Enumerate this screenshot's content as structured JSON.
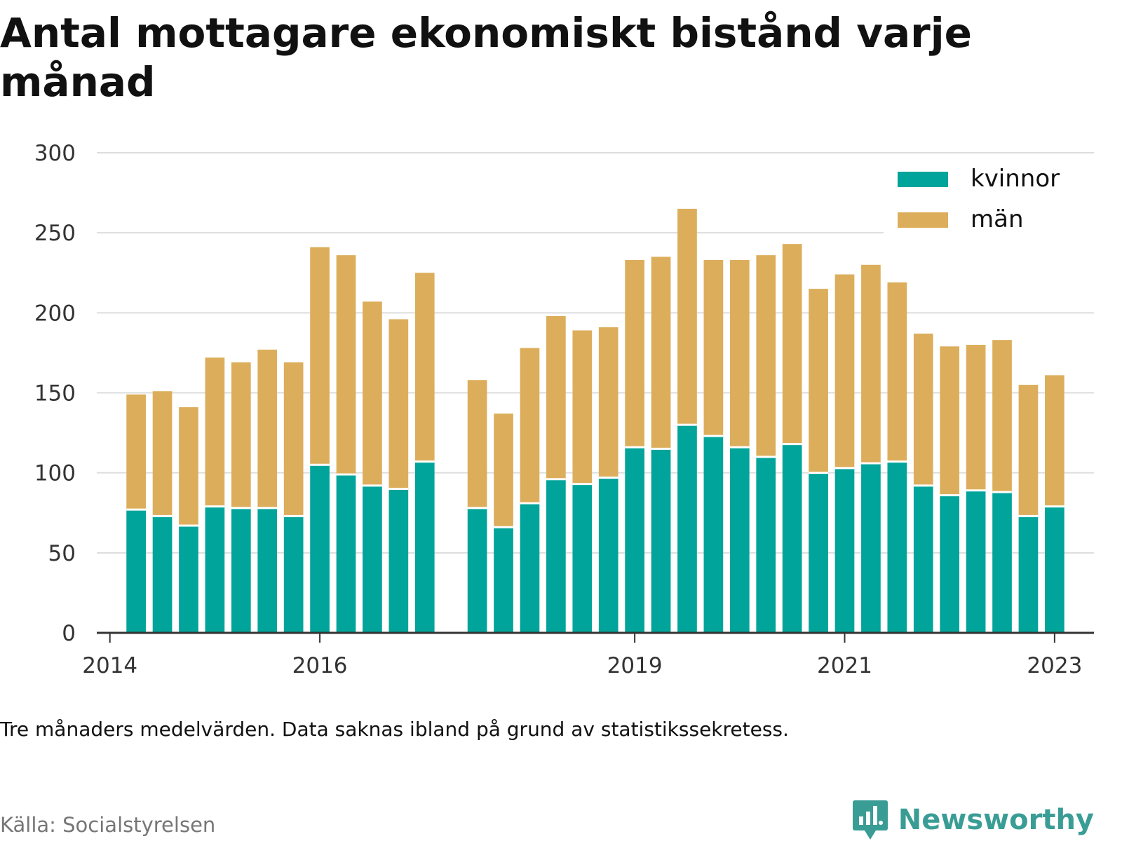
{
  "title": "Antal mottagare ekonomiskt bistånd varje månad",
  "footnote": "Tre månaders medelvärden. Data saknas ibland på grund av statistikssekretess.",
  "source": "Källa: Socialstyrelsen",
  "brand": {
    "name": "Newsworthy",
    "logo_icon": "newsworthy-logo-icon",
    "color": "#3a9d95"
  },
  "colors": {
    "kvinnor": "#00a49a",
    "man": "#dcae5b",
    "grid": "#dddddd",
    "axis": "#333333",
    "text": "#333333"
  },
  "chart_data": {
    "type": "bar",
    "stacked": true,
    "title": "Antal mottagare ekonomiskt bistånd varje månad",
    "xlabel": "",
    "ylabel": "",
    "ylim": [
      0,
      300
    ],
    "yticks": [
      "0",
      "50",
      "100",
      "150",
      "200",
      "250",
      "300"
    ],
    "xticks": [
      {
        "label": "2014",
        "quarter": "2014-Q1"
      },
      {
        "label": "2016",
        "quarter": "2016-Q1"
      },
      {
        "label": "2019",
        "quarter": "2019-Q1"
      },
      {
        "label": "2021",
        "quarter": "2021-Q1"
      },
      {
        "label": "2023",
        "quarter": "2023-Q1"
      }
    ],
    "legend_position": "top-right",
    "categories": [
      "2014-Q1",
      "2014-Q2",
      "2014-Q3",
      "2014-Q4",
      "2015-Q1",
      "2015-Q2",
      "2015-Q3",
      "2015-Q4",
      "2016-Q1",
      "2016-Q2",
      "2016-Q3",
      "2016-Q4",
      "2017-Q1",
      "2017-Q2",
      "2017-Q3",
      "2017-Q4",
      "2018-Q1",
      "2018-Q2",
      "2018-Q3",
      "2018-Q4",
      "2019-Q1",
      "2019-Q2",
      "2019-Q3",
      "2019-Q4",
      "2020-Q1",
      "2020-Q2",
      "2020-Q3",
      "2020-Q4",
      "2021-Q1",
      "2021-Q2",
      "2021-Q3",
      "2021-Q4",
      "2022-Q1",
      "2022-Q2",
      "2022-Q3",
      "2022-Q4",
      "2023-Q1",
      "2023-Q2"
    ],
    "series": [
      {
        "name": "kvinnor",
        "values": [
          null,
          77,
          73,
          67,
          79,
          78,
          78,
          73,
          105,
          99,
          92,
          90,
          107,
          null,
          78,
          66,
          81,
          96,
          93,
          97,
          116,
          115,
          130,
          123,
          116,
          110,
          118,
          100,
          103,
          106,
          107,
          92,
          86,
          89,
          88,
          73,
          79,
          null
        ]
      },
      {
        "name": "män",
        "values": [
          null,
          72,
          78,
          74,
          93,
          91,
          99,
          96,
          136,
          137,
          115,
          106,
          118,
          null,
          80,
          71,
          97,
          102,
          96,
          94,
          117,
          120,
          135,
          110,
          117,
          126,
          125,
          115,
          121,
          124,
          112,
          95,
          93,
          91,
          95,
          82,
          82,
          null
        ]
      }
    ]
  }
}
